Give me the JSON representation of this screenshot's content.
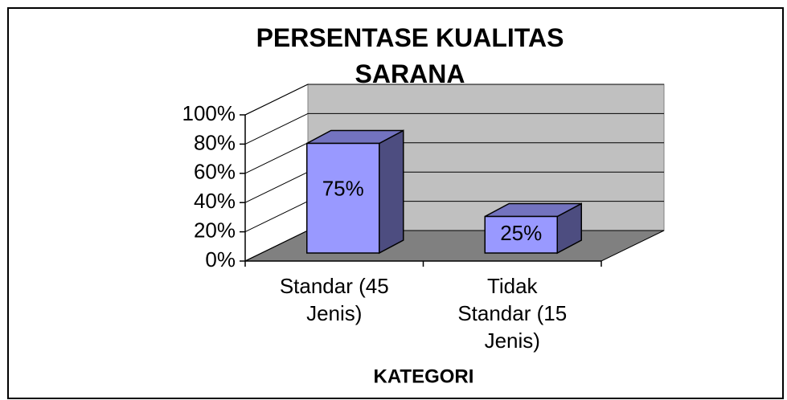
{
  "chart_data": {
    "type": "bar3d",
    "title": "PERSENTASE KUALITAS SARANA",
    "x_label": "KATEGORI",
    "categories": [
      "Standar (45 Jenis)",
      "Tidak Standar (15 Jenis)"
    ],
    "values": [
      75,
      25
    ],
    "value_labels": [
      "75%",
      "25%"
    ],
    "color": "#9999ff",
    "ylim": [
      0,
      100
    ],
    "yticks": [
      {
        "value": 0,
        "label": "0%"
      },
      {
        "value": 20,
        "label": "20%"
      },
      {
        "value": 40,
        "label": "40%"
      },
      {
        "value": 60,
        "label": "60%"
      },
      {
        "value": 80,
        "label": "80%"
      },
      {
        "value": 100,
        "label": "100%"
      }
    ],
    "grid": true
  }
}
